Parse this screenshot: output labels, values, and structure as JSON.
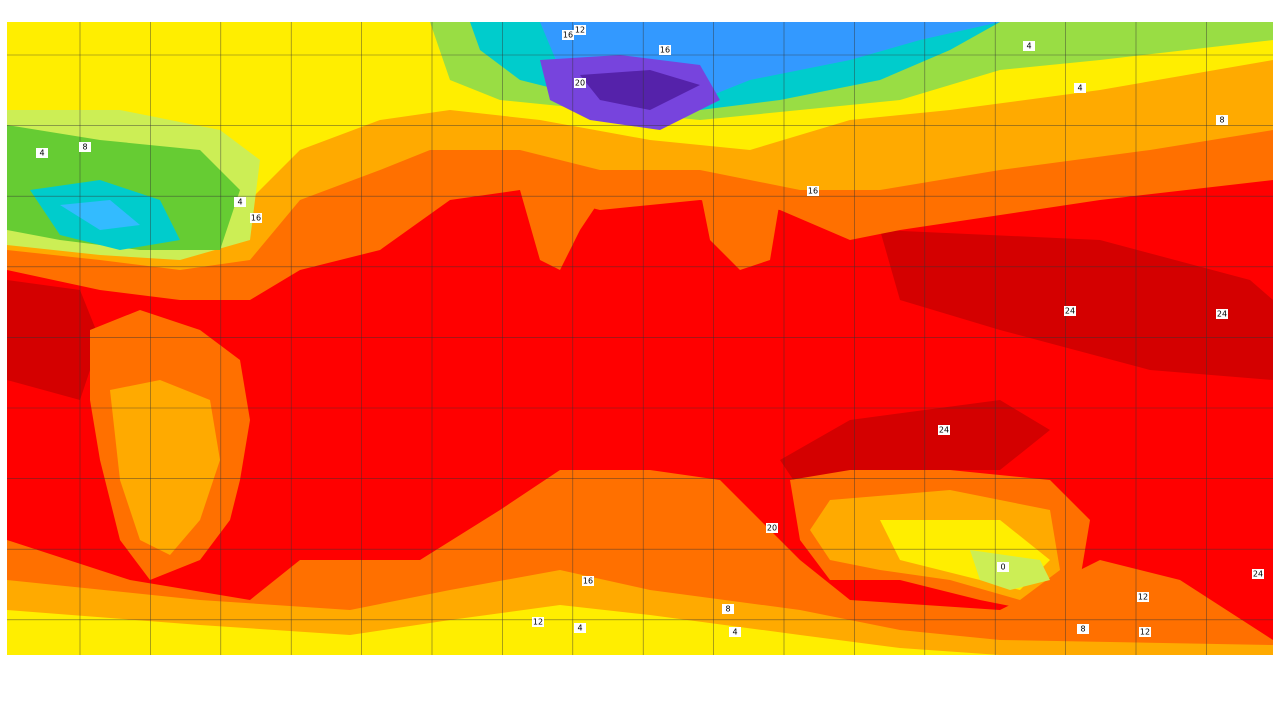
{
  "contour_labels": [
    "12",
    "16",
    "20",
    "16",
    "4",
    "8",
    "16",
    "16",
    "24",
    "24",
    "24",
    "20",
    "16",
    "8",
    "12",
    "4",
    "4",
    "0",
    "12",
    "12",
    "8",
    "4",
    "8",
    "4",
    "4",
    "24"
  ]
}
